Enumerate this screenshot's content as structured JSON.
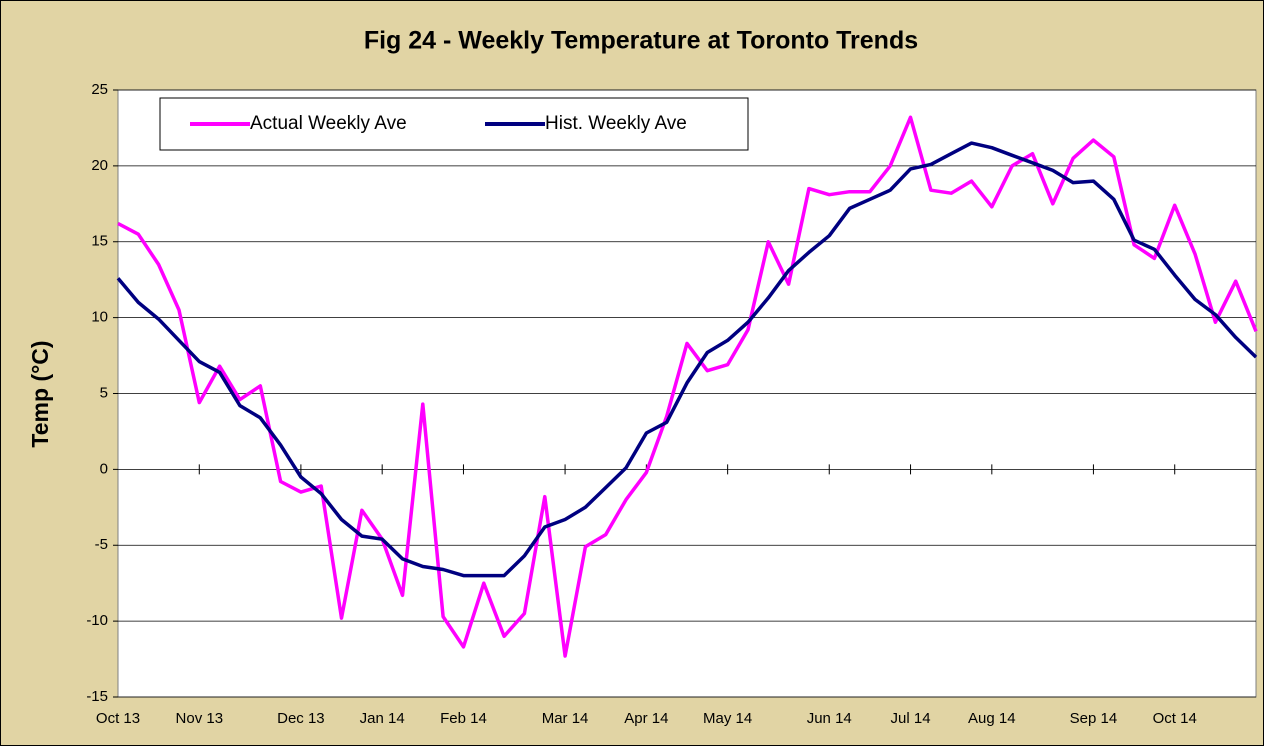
{
  "chart_data": {
    "type": "line",
    "title": "Fig 24 - Weekly Temperature at Toronto Trends",
    "y_label": "Temp (°C)",
    "categories": [
      "Oct 13",
      null,
      null,
      null,
      "Nov 13",
      null,
      null,
      null,
      null,
      "Dec 13",
      null,
      null,
      null,
      "Jan 14",
      null,
      null,
      null,
      "Feb 14",
      null,
      null,
      null,
      null,
      "Mar 14",
      null,
      null,
      null,
      "Apr 14",
      null,
      null,
      null,
      "May 14",
      null,
      null,
      null,
      null,
      "Jun 14",
      null,
      null,
      null,
      "Jul 14",
      null,
      null,
      null,
      "Aug 14",
      null,
      null,
      null,
      null,
      "Sep 14",
      null,
      null,
      null,
      "Oct 14",
      null,
      null,
      null,
      null
    ],
    "series": [
      {
        "name": "Actual Weekly Ave",
        "color": "#ff00ff",
        "values": [
          16.2,
          15.5,
          13.5,
          10.5,
          4.4,
          6.8,
          4.6,
          5.5,
          -0.8,
          -1.5,
          -1.1,
          -9.8,
          -2.7,
          -4.6,
          -8.3,
          4.3,
          -9.7,
          -11.7,
          -7.5,
          -11.0,
          -9.5,
          -1.8,
          -12.3,
          -5.1,
          -4.3,
          -2.0,
          -0.2,
          3.5,
          8.3,
          6.5,
          6.9,
          9.2,
          15.0,
          12.2,
          18.5,
          18.1,
          18.3,
          18.3,
          20.0,
          23.2,
          18.4,
          18.2,
          19.0,
          17.3,
          20.0,
          20.8,
          17.5,
          20.5,
          21.7,
          20.6,
          14.8,
          13.9,
          17.4,
          14.2,
          9.7,
          12.4,
          9.1
        ]
      },
      {
        "name": "Hist. Weekly Ave",
        "color": "#000080",
        "values": [
          12.6,
          11.0,
          9.9,
          8.5,
          7.1,
          6.4,
          4.2,
          3.4,
          1.6,
          -0.5,
          -1.6,
          -3.3,
          -4.4,
          -4.6,
          -5.9,
          -6.4,
          -6.6,
          -7.0,
          -7.0,
          -7.0,
          -5.7,
          -3.8,
          -3.3,
          -2.5,
          -1.2,
          0.1,
          2.4,
          3.1,
          5.7,
          7.7,
          8.5,
          9.7,
          11.3,
          13.1,
          14.3,
          15.4,
          17.2,
          17.8,
          18.4,
          19.8,
          20.1,
          20.8,
          21.5,
          21.2,
          20.7,
          20.2,
          19.7,
          18.9,
          19.0,
          17.8,
          15.1,
          14.5,
          12.8,
          11.2,
          10.2,
          8.7,
          7.4
        ]
      }
    ],
    "ylim": [
      -15,
      25
    ],
    "yticks": [
      -15,
      -10,
      -5,
      0,
      5,
      10,
      15,
      20,
      25
    ],
    "grid": true
  }
}
